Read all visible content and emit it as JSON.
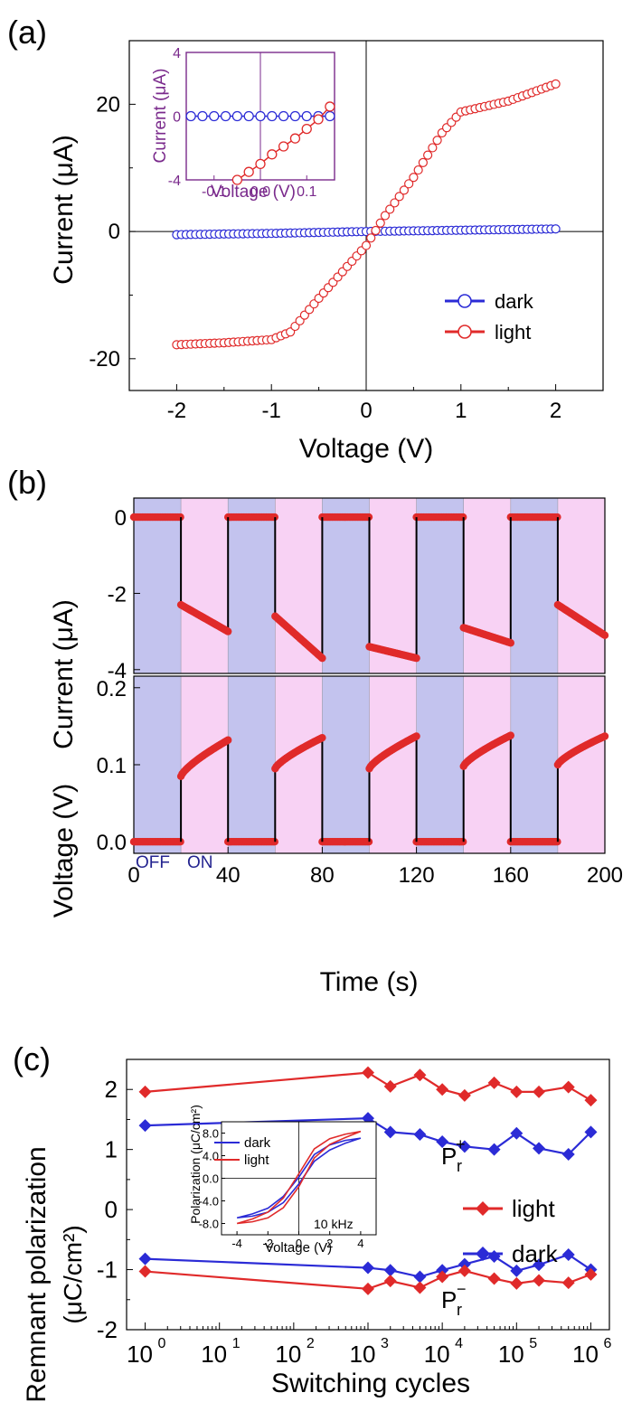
{
  "chart_data": [
    {
      "panel_label": "(a)",
      "type": "line",
      "xlabel": "Voltage (V)",
      "ylabel": "Current (μA)",
      "xlim": [
        -2.5,
        2.5
      ],
      "ylim": [
        -25,
        30
      ],
      "xticks": [
        -2,
        -1,
        0,
        1,
        2
      ],
      "yticks": [
        -20,
        0,
        20
      ],
      "xtick_labels": [
        "-2",
        "-1",
        "0",
        "1",
        "2"
      ],
      "ytick_labels": [
        "-20",
        "0",
        "20"
      ],
      "legend_position": "lower-right",
      "series": [
        {
          "name": "dark",
          "color": "#2b2bd6",
          "x": [
            -2,
            -1,
            0,
            1,
            2
          ],
          "y": [
            -0.5,
            -0.3,
            0,
            0.2,
            0.4
          ]
        },
        {
          "name": "light",
          "color": "#e02a2a",
          "x": [
            -2,
            -1.5,
            -1,
            -0.8,
            -0.5,
            -0.2,
            0,
            0.2,
            0.5,
            0.8,
            1,
            1.5,
            2
          ],
          "y": [
            -17.8,
            -17.5,
            -17.0,
            -15.8,
            -10.5,
            -5.5,
            -2.2,
            2.5,
            8.5,
            15.5,
            18.8,
            20.5,
            23.2
          ]
        }
      ],
      "inset": {
        "xlabel": "Voltage (V)",
        "ylabel": "Current (μA)",
        "xlim": [
          -0.16,
          0.16
        ],
        "ylim": [
          -4,
          4
        ],
        "xticks": [
          -0.1,
          0.0,
          0.1
        ],
        "yticks": [
          -4,
          0,
          4
        ],
        "xtick_labels": [
          "-0.1",
          "0.0",
          "0.1"
        ],
        "ytick_labels": [
          "-4",
          "0",
          "4"
        ],
        "color": "#7a2a8c",
        "series": [
          {
            "name": "dark",
            "color": "#2b2bd6",
            "x": [
              -0.15,
              -0.125,
              -0.1,
              -0.075,
              -0.05,
              -0.025,
              0,
              0.025,
              0.05,
              0.075,
              0.1,
              0.125,
              0.15
            ],
            "y": [
              0,
              0,
              0,
              0,
              0,
              0,
              0,
              0,
              0,
              0,
              0,
              0,
              0
            ]
          },
          {
            "name": "light",
            "color": "#e02a2a",
            "x": [
              -0.05,
              -0.025,
              0,
              0.025,
              0.05,
              0.075,
              0.1,
              0.125,
              0.15
            ],
            "y": [
              -4.0,
              -3.5,
              -3.0,
              -2.4,
              -1.9,
              -1.4,
              -0.8,
              -0.2,
              0.6
            ]
          }
        ]
      }
    },
    {
      "panel_label": "(b)",
      "type": "line",
      "xlabel": "Time (s)",
      "xlim": [
        0,
        200
      ],
      "xticks": [
        0,
        40,
        80,
        120,
        160,
        200
      ],
      "xtick_labels": [
        "0",
        "40",
        "80",
        "120",
        "160",
        "200"
      ],
      "shading": {
        "period_s": 20,
        "off_color": "#c3c3ee",
        "on_color": "#f8d2f4",
        "off_label": "OFF",
        "on_label": "ON",
        "label_color": "#23238f"
      },
      "top": {
        "ylabel": "Current (μA)",
        "ylim": [
          -4.1,
          0.5
        ],
        "yticks": [
          0,
          -2,
          -4
        ],
        "ytick_labels": [
          "0",
          "-2",
          "-4"
        ],
        "on_segments": [
          {
            "t0": 20,
            "t1": 40,
            "y0": -2.3,
            "y1": -3.0
          },
          {
            "t0": 60,
            "t1": 80,
            "y0": -2.6,
            "y1": -3.7
          },
          {
            "t0": 100,
            "t1": 120,
            "y0": -3.4,
            "y1": -3.7
          },
          {
            "t0": 140,
            "t1": 160,
            "y0": -2.9,
            "y1": -3.3
          },
          {
            "t0": 180,
            "t1": 200,
            "y0": -2.3,
            "y1": -3.1
          }
        ],
        "off_value": 0
      },
      "bottom": {
        "ylabel": "Voltage (V)",
        "ylim": [
          -0.015,
          0.215
        ],
        "yticks": [
          0.0,
          0.1,
          0.2
        ],
        "ytick_labels": [
          "0.0",
          "0.1",
          "0.2"
        ],
        "on_segments": [
          {
            "t0": 20,
            "t1": 40,
            "y0": 0.085,
            "y1": 0.132
          },
          {
            "t0": 60,
            "t1": 80,
            "y0": 0.095,
            "y1": 0.135
          },
          {
            "t0": 100,
            "t1": 120,
            "y0": 0.095,
            "y1": 0.137
          },
          {
            "t0": 140,
            "t1": 160,
            "y0": 0.098,
            "y1": 0.138
          },
          {
            "t0": 180,
            "t1": 200,
            "y0": 0.1,
            "y1": 0.137
          }
        ],
        "off_value": 0
      },
      "marker_color": "#e02a2a",
      "line_color": "#000000"
    },
    {
      "panel_label": "(c)",
      "type": "line",
      "xlabel": "Switching cycles",
      "ylabel_line1": "Remnant polarization",
      "ylabel_line2": "(μC/cm²)",
      "x_scale": "log",
      "xlim_log10": [
        -0.25,
        6.25
      ],
      "ylim": [
        -2,
        2.5
      ],
      "xticks_log10": [
        0,
        1,
        2,
        3,
        4,
        5,
        6
      ],
      "xtick_labels": [
        "10",
        "10",
        "10",
        "10",
        "10",
        "10",
        "10"
      ],
      "xtick_exponents": [
        "0",
        "1",
        "2",
        "3",
        "4",
        "5",
        "6"
      ],
      "yticks": [
        2,
        1,
        0,
        -1,
        -2
      ],
      "ytick_labels": [
        "2",
        "1",
        "0",
        "-1",
        "-2"
      ],
      "x_cycles": [
        1,
        1000,
        2000,
        5000,
        10000,
        20000,
        50000,
        100000,
        200000,
        500000,
        1000000
      ],
      "series": [
        {
          "name": "light",
          "color": "#e02a2a",
          "values": [
            1.96,
            2.28,
            2.05,
            2.24,
            2.0,
            1.9,
            2.11,
            1.96,
            1.96,
            2.04,
            1.82
          ]
        },
        {
          "name": "dark",
          "color": "#2b2bd6",
          "values": [
            1.4,
            1.52,
            1.29,
            1.25,
            1.13,
            1.05,
            1.0,
            1.27,
            1.02,
            0.92,
            1.29
          ]
        },
        {
          "name": "dark",
          "color": "#2b2bd6",
          "values": [
            -0.82,
            -0.97,
            -1.01,
            -1.12,
            -1.01,
            -0.91,
            -0.78,
            -1.02,
            -0.92,
            -0.75,
            -1.0
          ]
        },
        {
          "name": "light",
          "color": "#e02a2a",
          "values": [
            -1.03,
            -1.32,
            -1.19,
            -1.3,
            -1.12,
            -1.02,
            -1.15,
            -1.23,
            -1.18,
            -1.22,
            -1.08
          ]
        }
      ],
      "legend": [
        {
          "name": "light",
          "color": "#e02a2a"
        },
        {
          "name": "dark",
          "color": "#2b2bd6"
        }
      ],
      "annotations": {
        "p_plus": "P",
        "p_plus_sub": "r",
        "p_plus_sup": "+",
        "p_minus": "P",
        "p_minus_sub": "r",
        "p_minus_sup": "−"
      },
      "inset": {
        "xlabel": "Voltage (V)",
        "ylabel": "Polarization (μC/cm²)",
        "xlim": [
          -5,
          5
        ],
        "ylim": [
          -10,
          10
        ],
        "xticks": [
          -4,
          -2,
          0,
          2,
          4
        ],
        "yticks": [
          8,
          4,
          0,
          -4,
          -8
        ],
        "xtick_labels": [
          "-4",
          "-2",
          "0",
          "2",
          "4"
        ],
        "ytick_labels": [
          "8.0",
          "4.0",
          "0.0",
          "-4.0",
          "-8.0"
        ],
        "annotation": "10 kHz",
        "series": [
          {
            "name": "dark",
            "color": "#2b2bd6",
            "x": [
              -4,
              -3,
              -2,
              -1,
              0,
              1,
              2,
              3,
              4
            ],
            "y_up": [
              -7.0,
              -6.3,
              -5.3,
              -3.2,
              0.2,
              4.2,
              5.9,
              6.7,
              7.1
            ],
            "y_down": [
              -7.0,
              -6.7,
              -6.0,
              -4.3,
              -1.0,
              3.0,
              5.0,
              6.2,
              7.1
            ]
          },
          {
            "name": "light",
            "color": "#e02a2a",
            "x": [
              -4,
              -3,
              -2,
              -1,
              0,
              1,
              2,
              3,
              4
            ],
            "y_up": [
              -8.0,
              -7.2,
              -6.0,
              -3.5,
              0.8,
              5.2,
              7.0,
              7.8,
              8.3
            ],
            "y_down": [
              -8.0,
              -7.7,
              -7.0,
              -5.2,
              -1.5,
              3.6,
              6.0,
              7.2,
              8.3
            ]
          }
        ]
      }
    }
  ]
}
